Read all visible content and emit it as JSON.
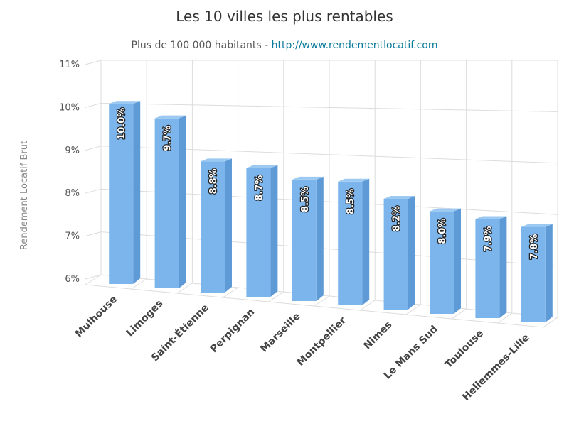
{
  "chart_data": {
    "type": "bar",
    "title": "Les 10 villes les plus rentables",
    "subtitle": "Plus de 100 000 habitants - ",
    "subtitle_link": "http://www.rendementlocatif.com",
    "ylabel": "Rendement Locatif Brut",
    "xlabel": "",
    "categories": [
      "Mulhouse",
      "Limoges",
      "Saint-Étienne",
      "Perpignan",
      "Marseille",
      "Montpellier",
      "Nimes",
      "Le Mans Sud",
      "Toulouse",
      "Hellemmes-Lille"
    ],
    "values": [
      10.0,
      9.7,
      8.8,
      8.7,
      8.5,
      8.5,
      8.2,
      8.0,
      7.9,
      7.8
    ],
    "data_labels": [
      "10.0%",
      "9.7%",
      "8.8%",
      "8.7%",
      "8.5%",
      "8.5%",
      "8.2%",
      "8.0%",
      "7.9%",
      "7.8%"
    ],
    "yticks": [
      6,
      7,
      8,
      9,
      10,
      11
    ],
    "ytick_labels": [
      "6%",
      "7%",
      "8%",
      "9%",
      "10%",
      "11%"
    ],
    "ylim": [
      6,
      11
    ],
    "grid": true,
    "legend": "none",
    "colors": {
      "bar_front": "#7cb5ec",
      "bar_side": "#5e9ad6",
      "bar_top": "#9cc9f2",
      "link": "#0a7a9a"
    }
  }
}
